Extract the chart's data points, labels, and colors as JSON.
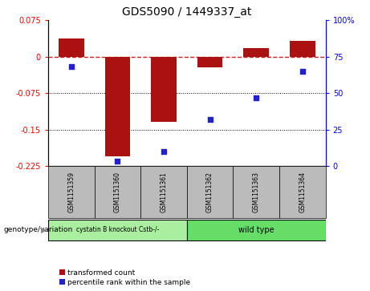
{
  "title": "GDS5090 / 1449337_at",
  "samples": [
    "GSM1151359",
    "GSM1151360",
    "GSM1151361",
    "GSM1151362",
    "GSM1151363",
    "GSM1151364"
  ],
  "bar_values": [
    0.038,
    -0.205,
    -0.135,
    -0.022,
    0.018,
    0.033
  ],
  "scatter_values": [
    68,
    3,
    10,
    32,
    47,
    65
  ],
  "ylim_left": [
    -0.225,
    0.075
  ],
  "ylim_right": [
    0,
    100
  ],
  "yticks_left": [
    0.075,
    0,
    -0.075,
    -0.15,
    -0.225
  ],
  "yticks_right": [
    100,
    75,
    50,
    25,
    0
  ],
  "hlines": [
    -0.075,
    -0.15
  ],
  "bar_color": "#aa1111",
  "scatter_color": "#2222cc",
  "dashed_line_color": "#cc2222",
  "group1_label": "cystatin B knockout Cstb-/-",
  "group2_label": "wild type",
  "group1_color": "#aaeea0",
  "group2_color": "#66dd66",
  "group_row_label": "genotype/variation",
  "legend_bar": "transformed count",
  "legend_scatter": "percentile rank within the sample",
  "n_group1": 3,
  "n_group2": 3,
  "bar_width": 0.55,
  "label_color": "#bbbbbb"
}
